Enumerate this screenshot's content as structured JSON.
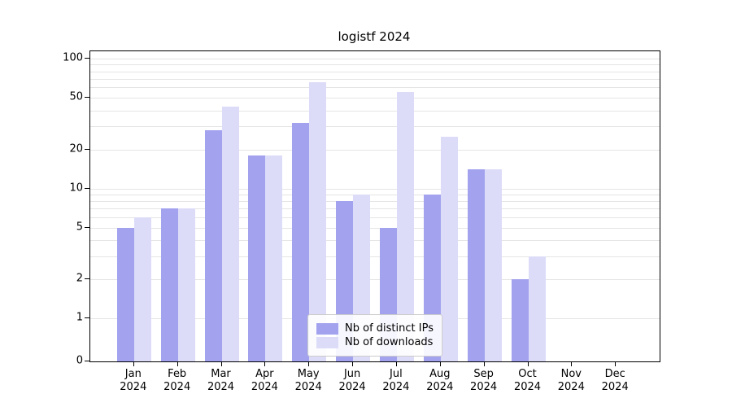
{
  "figure": {
    "title": "logistf 2024",
    "background": "#ffffff"
  },
  "chart_data": {
    "type": "bar",
    "title": "logistf 2024",
    "xlabel": "",
    "ylabel": "",
    "yscale": "log-above-1, 0 baseline",
    "ylim": [
      0,
      100
    ],
    "yticks": [
      0,
      1,
      2,
      5,
      10,
      20,
      50,
      100
    ],
    "gridlines": [
      1,
      2,
      3,
      4,
      5,
      6,
      7,
      8,
      9,
      10,
      20,
      30,
      40,
      50,
      60,
      70,
      80,
      90,
      100
    ],
    "grid": true,
    "legend_position": "lower center",
    "categories": [
      "Jan 2024",
      "Feb 2024",
      "Mar 2024",
      "Apr 2024",
      "May 2024",
      "Jun 2024",
      "Jul 2024",
      "Aug 2024",
      "Sep 2024",
      "Oct 2024",
      "Nov 2024",
      "Dec 2024"
    ],
    "series": [
      {
        "name": "Nb of distinct IPs",
        "color": "#a2a2ef",
        "values": [
          5,
          7,
          28,
          18,
          32,
          8,
          5,
          9,
          14,
          2,
          0,
          0
        ]
      },
      {
        "name": "Nb of downloads",
        "color": "#dcdcf8",
        "values": [
          6,
          7,
          43,
          18,
          66,
          9,
          55,
          25,
          14,
          3,
          0,
          0
        ]
      }
    ]
  }
}
